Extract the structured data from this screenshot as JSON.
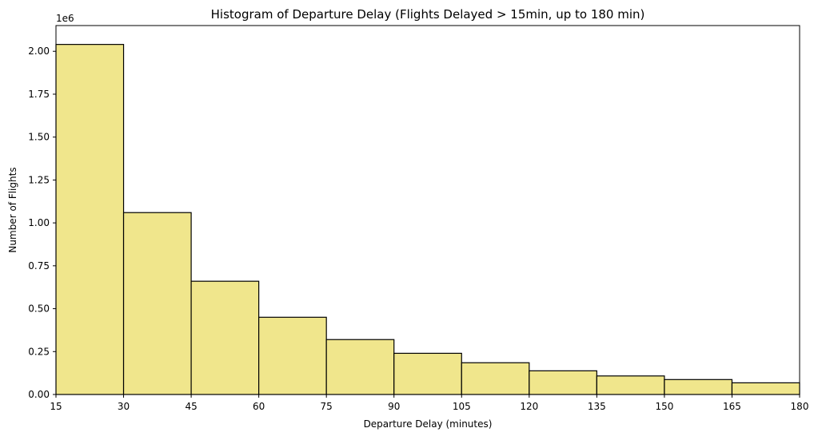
{
  "chart_data": {
    "type": "bar",
    "title": "Histogram of Departure Delay (Flights Delayed > 15min, up to 180 min)",
    "xlabel": "Departure Delay (minutes)",
    "ylabel": "Number of Flights",
    "y_scale_label": "1e6",
    "y_scale_factor": 1000000,
    "xlim": [
      15,
      180
    ],
    "ylim": [
      0,
      2150000
    ],
    "x_ticks": [
      15,
      30,
      45,
      60,
      75,
      90,
      105,
      120,
      135,
      150,
      165,
      180
    ],
    "x_tick_labels": [
      "15",
      "30",
      "45",
      "60",
      "75",
      "90",
      "105",
      "120",
      "135",
      "150",
      "165",
      "180"
    ],
    "y_ticks": [
      0,
      250000,
      500000,
      750000,
      1000000,
      1250000,
      1500000,
      1750000,
      2000000
    ],
    "y_tick_labels": [
      "0.00",
      "0.25",
      "0.50",
      "0.75",
      "1.00",
      "1.25",
      "1.50",
      "1.75",
      "2.00"
    ],
    "bins": [
      {
        "start": 15,
        "end": 30,
        "value": 2040000
      },
      {
        "start": 30,
        "end": 45,
        "value": 1060000
      },
      {
        "start": 45,
        "end": 60,
        "value": 660000
      },
      {
        "start": 60,
        "end": 75,
        "value": 450000
      },
      {
        "start": 75,
        "end": 90,
        "value": 320000
      },
      {
        "start": 90,
        "end": 105,
        "value": 240000
      },
      {
        "start": 105,
        "end": 120,
        "value": 185000
      },
      {
        "start": 120,
        "end": 135,
        "value": 138000
      },
      {
        "start": 135,
        "end": 150,
        "value": 108000
      },
      {
        "start": 150,
        "end": 165,
        "value": 87000
      },
      {
        "start": 165,
        "end": 180,
        "value": 68000
      }
    ],
    "grid": false,
    "bar_color": "#f0e68c",
    "edge_color": "#000000"
  }
}
